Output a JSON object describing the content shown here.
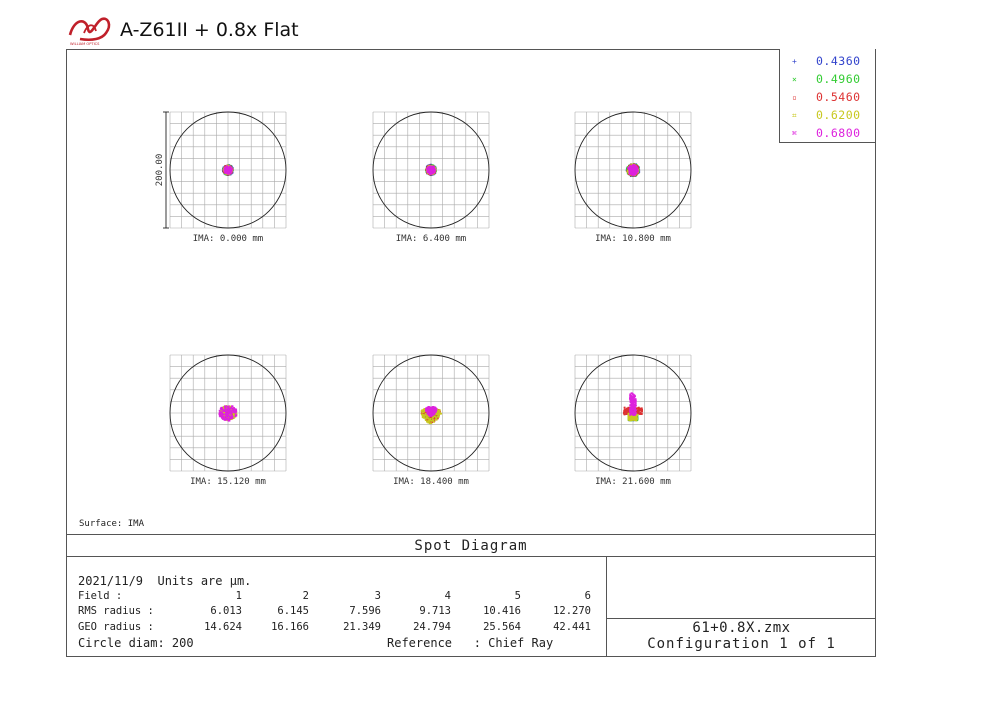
{
  "header": {
    "title": "A-Z61II + 0.8x Flat",
    "logo_text": "WILLIAM OPTICS"
  },
  "legend": [
    {
      "label": "0.4360",
      "color": "#3344cc",
      "marker": "+"
    },
    {
      "label": "0.4960",
      "color": "#33cc33",
      "marker": "×"
    },
    {
      "label": "0.5460",
      "color": "#dd3333",
      "marker": "▫"
    },
    {
      "label": "0.6200",
      "color": "#c8c820",
      "marker": "⌗"
    },
    {
      "label": "0.6800",
      "color": "#dd22dd",
      "marker": "⌘"
    }
  ],
  "scale_label": "200.00",
  "surface_label": "Surface: IMA",
  "title": "Spot Diagram",
  "info": {
    "date_units": "2021/11/9  Units are µm.",
    "field_label": "Field      :",
    "rms_label": "RMS radius :",
    "geo_label": "GEO radius :",
    "circle_label": "Circle diam: 200",
    "reference_label": "Reference   : Chief Ray",
    "field_values": [
      "1",
      "2",
      "3",
      "4",
      "5",
      "6"
    ],
    "rms_values": [
      "6.013",
      "6.145",
      "7.596",
      "9.713",
      "10.416",
      "12.270"
    ],
    "geo_values": [
      "14.624",
      "16.166",
      "21.349",
      "24.794",
      "25.564",
      "42.441"
    ],
    "file_name": "61+0.8X.zmx",
    "configuration": "Configuration 1 of 1"
  },
  "chart_data": {
    "type": "scatter",
    "title": "Spot Diagram",
    "circle_diameter_um": 200,
    "scale_um": 200.0,
    "wavelengths_um": [
      0.436,
      0.496,
      0.546,
      0.62,
      0.68
    ],
    "fields": [
      {
        "label": "IMA: 0.000 mm",
        "rms_radius": 6.013,
        "geo_radius": 14.624,
        "shape": "round"
      },
      {
        "label": "IMA: 6.400 mm",
        "rms_radius": 6.145,
        "geo_radius": 16.166,
        "shape": "round"
      },
      {
        "label": "IMA: 10.800 mm",
        "rms_radius": 7.596,
        "geo_radius": 21.349,
        "shape": "round"
      },
      {
        "label": "IMA: 15.120 mm",
        "rms_radius": 9.713,
        "geo_radius": 24.794,
        "shape": "oval"
      },
      {
        "label": "IMA: 18.400 mm",
        "rms_radius": 10.416,
        "geo_radius": 25.564,
        "shape": "triangle"
      },
      {
        "label": "IMA: 21.600 mm",
        "rms_radius": 12.27,
        "geo_radius": 42.441,
        "shape": "arrow"
      }
    ]
  }
}
